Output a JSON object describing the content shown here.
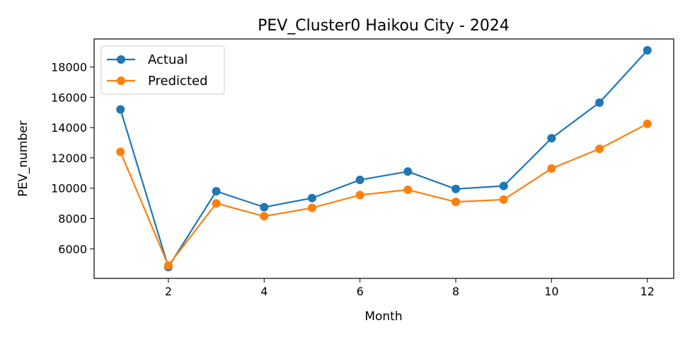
{
  "chart_data": {
    "type": "line",
    "title": "PEV_Cluster0 Haikou City - 2024",
    "xlabel": "Month",
    "ylabel": "PEV_number",
    "x": [
      1,
      2,
      3,
      4,
      5,
      6,
      7,
      8,
      9,
      10,
      11,
      12
    ],
    "xlim": [
      0.45,
      12.55
    ],
    "ylim": [
      4050,
      19850
    ],
    "xticks": [
      2,
      4,
      6,
      8,
      10,
      12
    ],
    "yticks": [
      6000,
      8000,
      10000,
      12000,
      14000,
      16000,
      18000
    ],
    "grid": false,
    "legend_position": "upper-left",
    "series": [
      {
        "name": "Actual",
        "color": "#1f77b4",
        "values": [
          15200,
          4800,
          9800,
          8750,
          9350,
          10550,
          11100,
          9950,
          10150,
          13300,
          15650,
          19100
        ]
      },
      {
        "name": "Predicted",
        "color": "#ff7f0e",
        "values": [
          12400,
          4900,
          9000,
          8150,
          8700,
          9550,
          9900,
          9100,
          9250,
          11300,
          12600,
          14250
        ]
      }
    ]
  }
}
